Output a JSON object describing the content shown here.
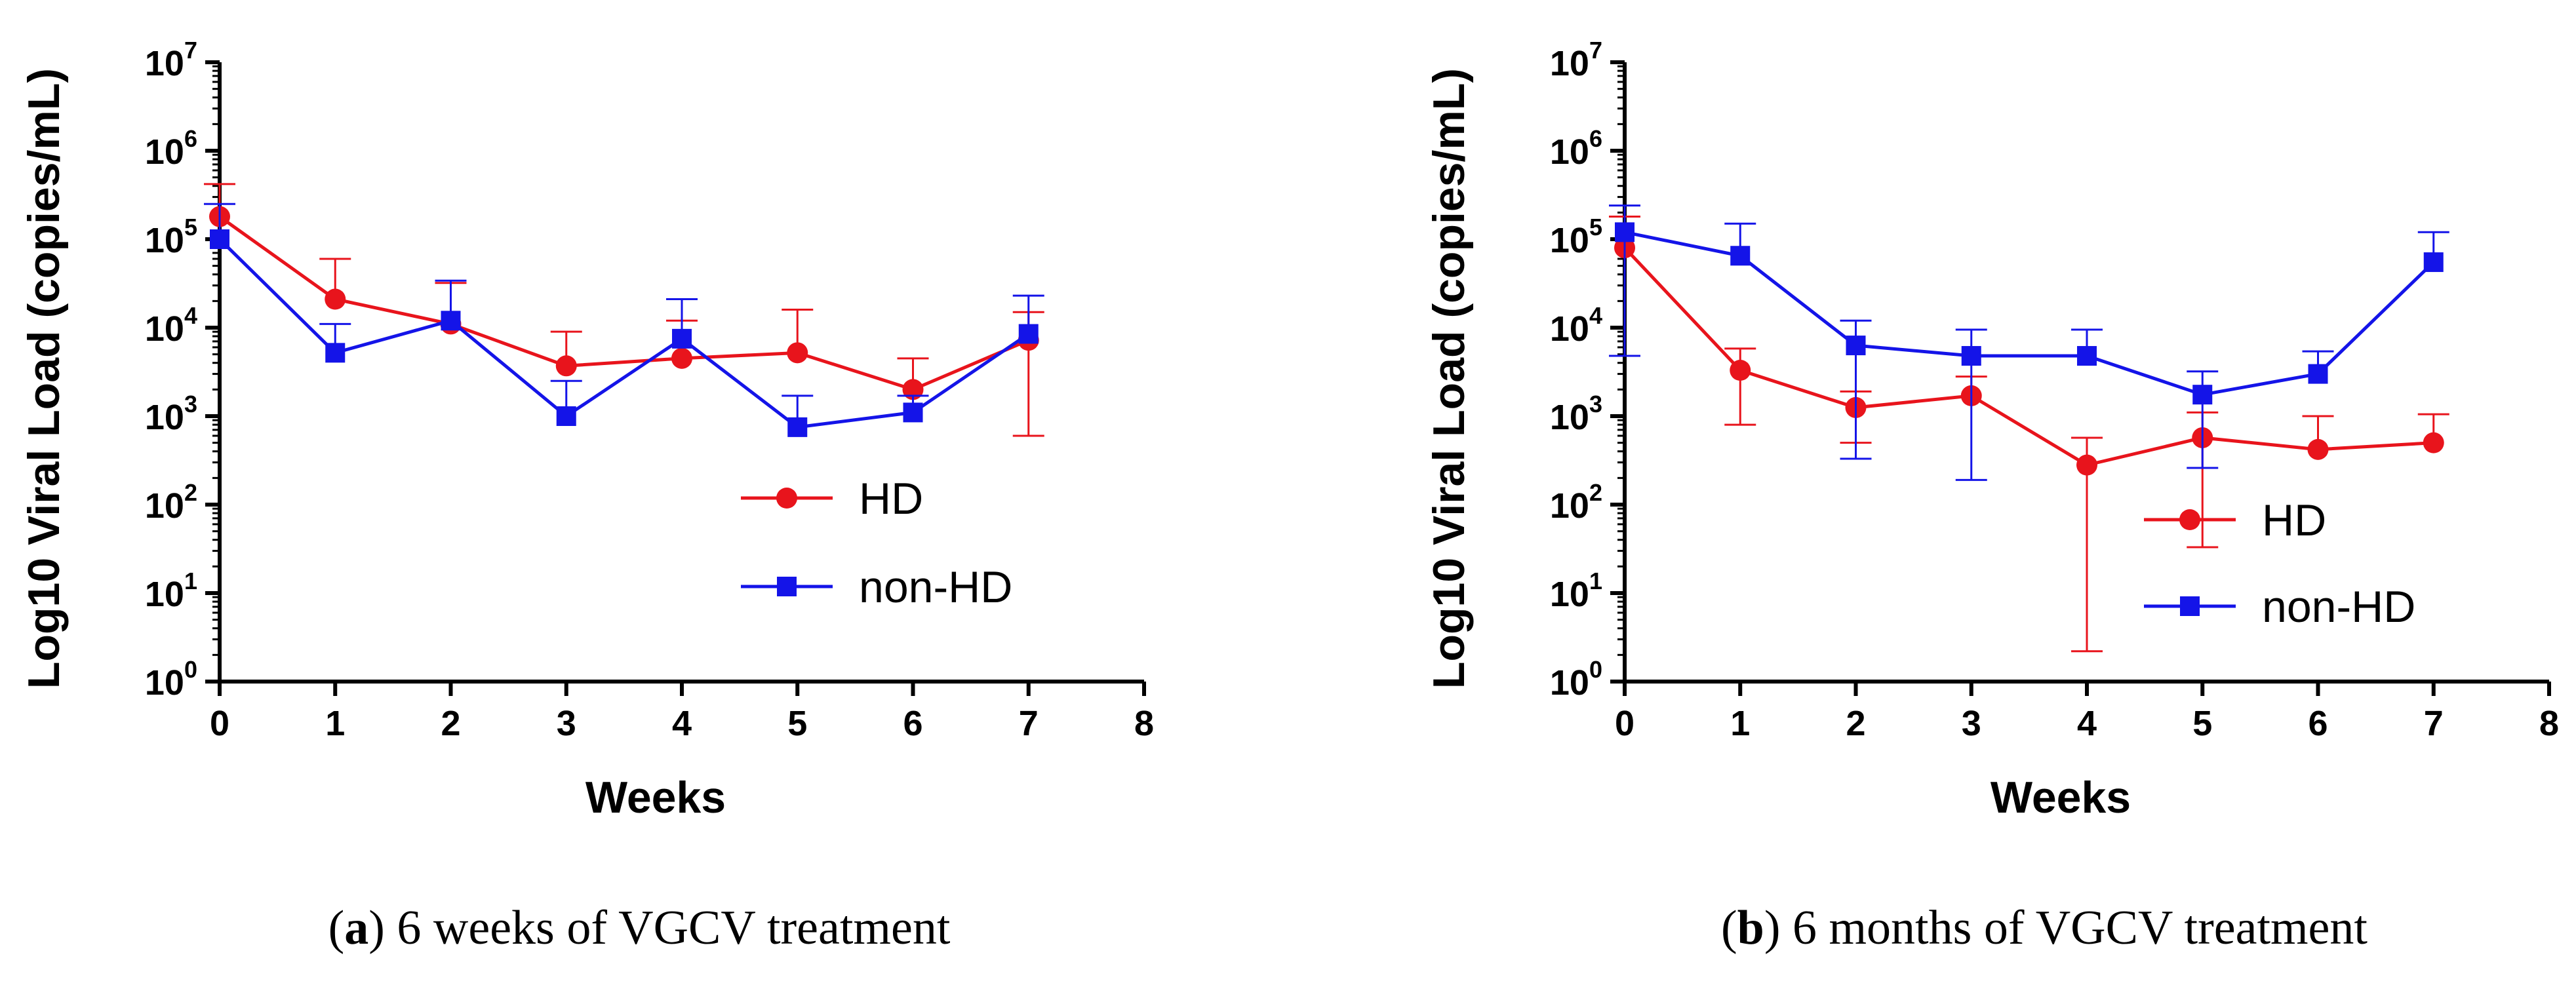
{
  "chart_data": [
    {
      "type": "line",
      "panel_letter": "a",
      "caption": "6 weeks of VGCV treatment",
      "xlabel": "Weeks",
      "ylabel": "Log10 Viral Load (copies/mL)",
      "yscale": "log",
      "xlim": [
        0,
        8
      ],
      "ylim": [
        1,
        10000000
      ],
      "x_ticks": [
        0,
        1,
        2,
        3,
        4,
        5,
        6,
        7,
        8
      ],
      "y_ticks": [
        {
          "base": "10",
          "exp": "0",
          "value": 1
        },
        {
          "base": "10",
          "exp": "1",
          "value": 10
        },
        {
          "base": "10",
          "exp": "2",
          "value": 100
        },
        {
          "base": "10",
          "exp": "3",
          "value": 1000
        },
        {
          "base": "10",
          "exp": "4",
          "value": 10000
        },
        {
          "base": "10",
          "exp": "5",
          "value": 100000
        },
        {
          "base": "10",
          "exp": "6",
          "value": 1000000
        },
        {
          "base": "10",
          "exp": "7",
          "value": 10000000
        }
      ],
      "legend_position": "center-right",
      "series": [
        {
          "name": "HD",
          "color": "#e8141c",
          "marker": "circle",
          "x": [
            0,
            1,
            2,
            3,
            4,
            5,
            6,
            7
          ],
          "values": [
            180000,
            21000,
            11000,
            3700,
            4500,
            5200,
            2000,
            7200
          ],
          "err_low": [
            null,
            null,
            null,
            null,
            null,
            null,
            null,
            600
          ],
          "err_high": [
            420000,
            60000,
            32000,
            9000,
            12000,
            16000,
            4500,
            15000
          ]
        },
        {
          "name": "non-HD",
          "color": "#1414e8",
          "marker": "square",
          "x": [
            0,
            1,
            2,
            3,
            4,
            5,
            6,
            7
          ],
          "values": [
            100000,
            5200,
            12000,
            1000,
            7500,
            750,
            1100,
            8500
          ],
          "err_low": [
            null,
            null,
            null,
            null,
            null,
            null,
            null,
            null
          ],
          "err_high": [
            250000,
            11000,
            34000,
            2500,
            21000,
            1700,
            1700,
            23000
          ]
        }
      ]
    },
    {
      "type": "line",
      "panel_letter": "b",
      "caption": "6 months of VGCV treatment",
      "xlabel": "Weeks",
      "ylabel": "Log10 Viral Load (copies/mL)",
      "yscale": "log",
      "xlim": [
        0,
        8
      ],
      "ylim": [
        1,
        10000000
      ],
      "x_ticks": [
        0,
        1,
        2,
        3,
        4,
        5,
        6,
        7,
        8
      ],
      "y_ticks": [
        {
          "base": "10",
          "exp": "0",
          "value": 1
        },
        {
          "base": "10",
          "exp": "1",
          "value": 10
        },
        {
          "base": "10",
          "exp": "2",
          "value": 100
        },
        {
          "base": "10",
          "exp": "3",
          "value": 1000
        },
        {
          "base": "10",
          "exp": "4",
          "value": 10000
        },
        {
          "base": "10",
          "exp": "5",
          "value": 100000
        },
        {
          "base": "10",
          "exp": "6",
          "value": 1000000
        },
        {
          "base": "10",
          "exp": "7",
          "value": 10000000
        }
      ],
      "legend_position": "lower-right",
      "series": [
        {
          "name": "HD",
          "color": "#e8141c",
          "marker": "circle",
          "x": [
            0,
            1,
            2,
            3,
            4,
            5,
            6,
            7
          ],
          "values": [
            80000,
            3300,
            1250,
            1700,
            280,
            570,
            420,
            500
          ],
          "err_low": [
            null,
            800,
            500,
            null,
            2.2,
            33,
            null,
            null
          ],
          "err_high": [
            180000,
            5800,
            1900,
            2800,
            570,
            1100,
            1000,
            1050
          ]
        },
        {
          "name": "non-HD",
          "color": "#1414e8",
          "marker": "square",
          "x": [
            0,
            1,
            2,
            3,
            4,
            5,
            6,
            7
          ],
          "values": [
            120000,
            65000,
            6300,
            4800,
            4800,
            1750,
            3000,
            55000
          ],
          "err_low": [
            4800,
            null,
            330,
            190,
            null,
            260,
            null,
            null
          ],
          "err_high": [
            240000,
            150000,
            12000,
            9500,
            9500,
            3200,
            5400,
            120000
          ]
        }
      ]
    }
  ]
}
